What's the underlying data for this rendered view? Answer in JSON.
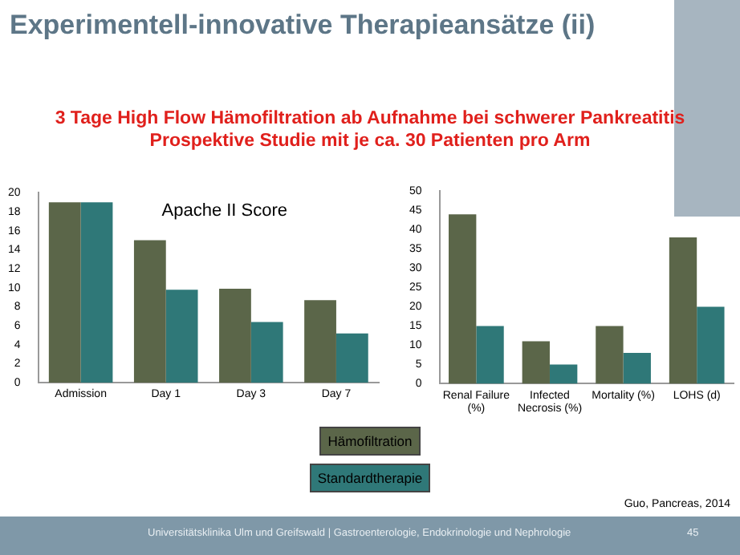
{
  "chart_data": [
    {
      "type": "bar",
      "title": "Apache II Score",
      "categories": [
        "Admission",
        "Day 1",
        "Day 3",
        "Day 7"
      ],
      "series": [
        {
          "name": "Hämofiltration",
          "color": "#5b6649",
          "values": [
            19,
            15,
            9.9,
            8.7
          ]
        },
        {
          "name": "Standardtherapie",
          "color": "#2f7878",
          "values": [
            19,
            9.8,
            6.4,
            5.2
          ]
        }
      ],
      "ylim": [
        0,
        20
      ],
      "yticks": [
        0,
        2,
        4,
        6,
        8,
        10,
        12,
        14,
        16,
        18,
        20
      ],
      "grid": false,
      "legend": "bottom",
      "annotations": [
        "Experimentell-innovative Therapieansätze (ii)",
        "3 Tage High Flow Hämofiltration ab Aufnahme bei schwerer Pankreatitis",
        "Prospektive Studie mit je ca. 30 Patienten pro Arm",
        "Guo, Pancreas, 2014",
        "Universitätsklinika Ulm und Greifswald | Gastroenterologie, Endokrinologie und Nephrologie",
        "45"
      ]
    },
    {
      "type": "bar",
      "categories": [
        "Renal Failure (%)",
        "Infected Necrosis (%)",
        "Mortality (%)",
        "LOHS (d)"
      ],
      "series": [
        {
          "color": "#5b6649",
          "values": [
            44,
            11,
            15,
            38
          ]
        },
        {
          "color": "#2f7878",
          "values": [
            15,
            5,
            8,
            20
          ]
        }
      ],
      "ylim": [
        0,
        50
      ],
      "yticks": [
        0,
        5,
        10,
        15,
        20,
        25,
        30,
        35,
        40,
        45,
        50
      ],
      "grid": false
    }
  ]
}
